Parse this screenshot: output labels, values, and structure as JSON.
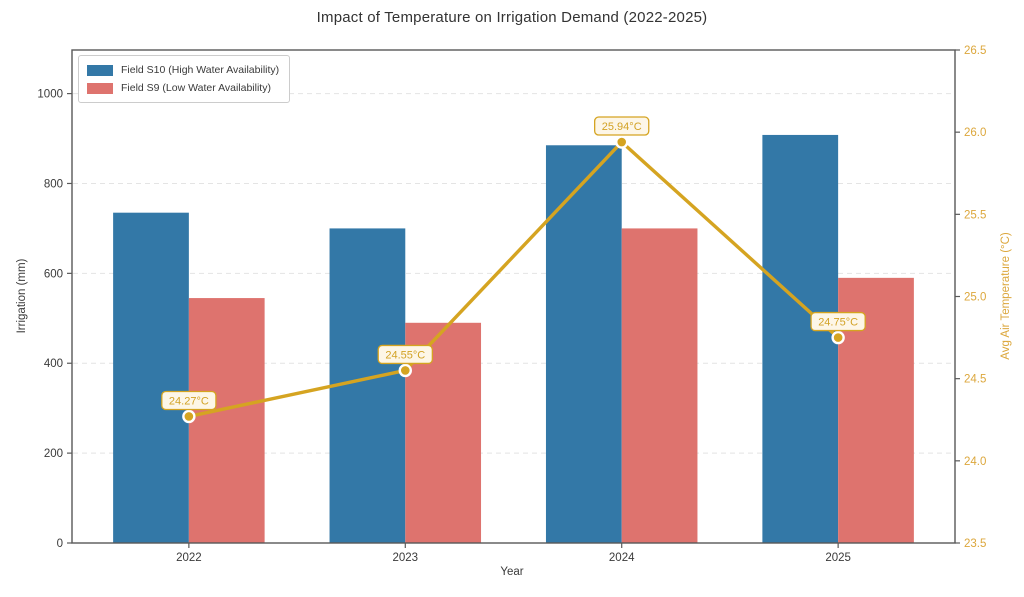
{
  "chart_data": {
    "type": "bar",
    "subtype": "grouped-bars-with-line-overlay",
    "title": "Impact of Temperature on Irrigation Demand (2022-2025)",
    "xlabel": "Year",
    "ylabel_left": "Irrigation (mm)",
    "ylabel_right": "Avg Air Temperature (°C)",
    "categories": [
      "2022",
      "2023",
      "2024",
      "2025"
    ],
    "series": [
      {
        "name": "Field S10 (High Water Availability)",
        "type": "bar",
        "axis": "left",
        "color": "#3378A7",
        "values": [
          735,
          700,
          885,
          908
        ]
      },
      {
        "name": "Field S9 (Low Water Availability)",
        "type": "bar",
        "axis": "left",
        "color": "#DE736E",
        "values": [
          545,
          490,
          700,
          590
        ]
      },
      {
        "name": "Avg Air Temperature",
        "type": "line",
        "axis": "right",
        "color": "#D5A421",
        "values": [
          24.27,
          24.55,
          25.94,
          24.75
        ],
        "point_labels": [
          "24.27°C",
          "24.55°C",
          "25.94°C",
          "24.75°C"
        ]
      }
    ],
    "yticks_left": [
      "0",
      "200",
      "400",
      "600",
      "800",
      "1000"
    ],
    "ytick_left_values": [
      0,
      200,
      400,
      600,
      800,
      1000
    ],
    "yticks_right": [
      "23.5",
      "24.0",
      "24.5",
      "25.0",
      "25.5",
      "26.0",
      "26.5"
    ],
    "ytick_right_values": [
      23.5,
      24.0,
      24.5,
      25.0,
      25.5,
      26.0,
      26.5
    ],
    "ylim_left": [
      0,
      1097
    ],
    "ylim_right": [
      23.5,
      26.5
    ],
    "grid": "horizontal dashed",
    "legend_position": "upper left",
    "colors": {
      "spine": "#595959",
      "grid": "#e4e4e4",
      "left_axis_text": "#3a3a3a",
      "right_axis_text": "#DCA73C",
      "annotation_bg": "#FDF6E7",
      "annotation_text": "#D2A225",
      "marker_edge": "#ffffff"
    }
  }
}
